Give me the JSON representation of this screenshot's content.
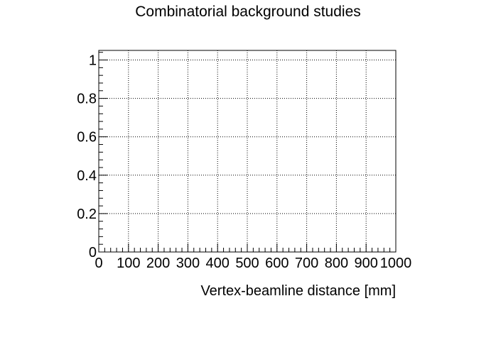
{
  "chart_data": {
    "type": "line",
    "title": "Combinatorial background studies",
    "xlabel": "Vertex-beamline distance [mm]",
    "ylabel": "",
    "xlim": [
      0,
      1000
    ],
    "ylim": [
      0,
      1.05
    ],
    "grid": true,
    "x_ticks": [
      0,
      100,
      200,
      300,
      400,
      500,
      600,
      700,
      800,
      900,
      1000
    ],
    "x_tick_labels": [
      "0",
      "100",
      "200",
      "300",
      "400",
      "500",
      "600",
      "700",
      "800",
      "900",
      "1000"
    ],
    "y_ticks": [
      0,
      0.2,
      0.4,
      0.6,
      0.8,
      1
    ],
    "y_tick_labels": [
      "0",
      "0.2",
      "0.4",
      "0.6",
      "0.8",
      "1"
    ],
    "series": []
  }
}
